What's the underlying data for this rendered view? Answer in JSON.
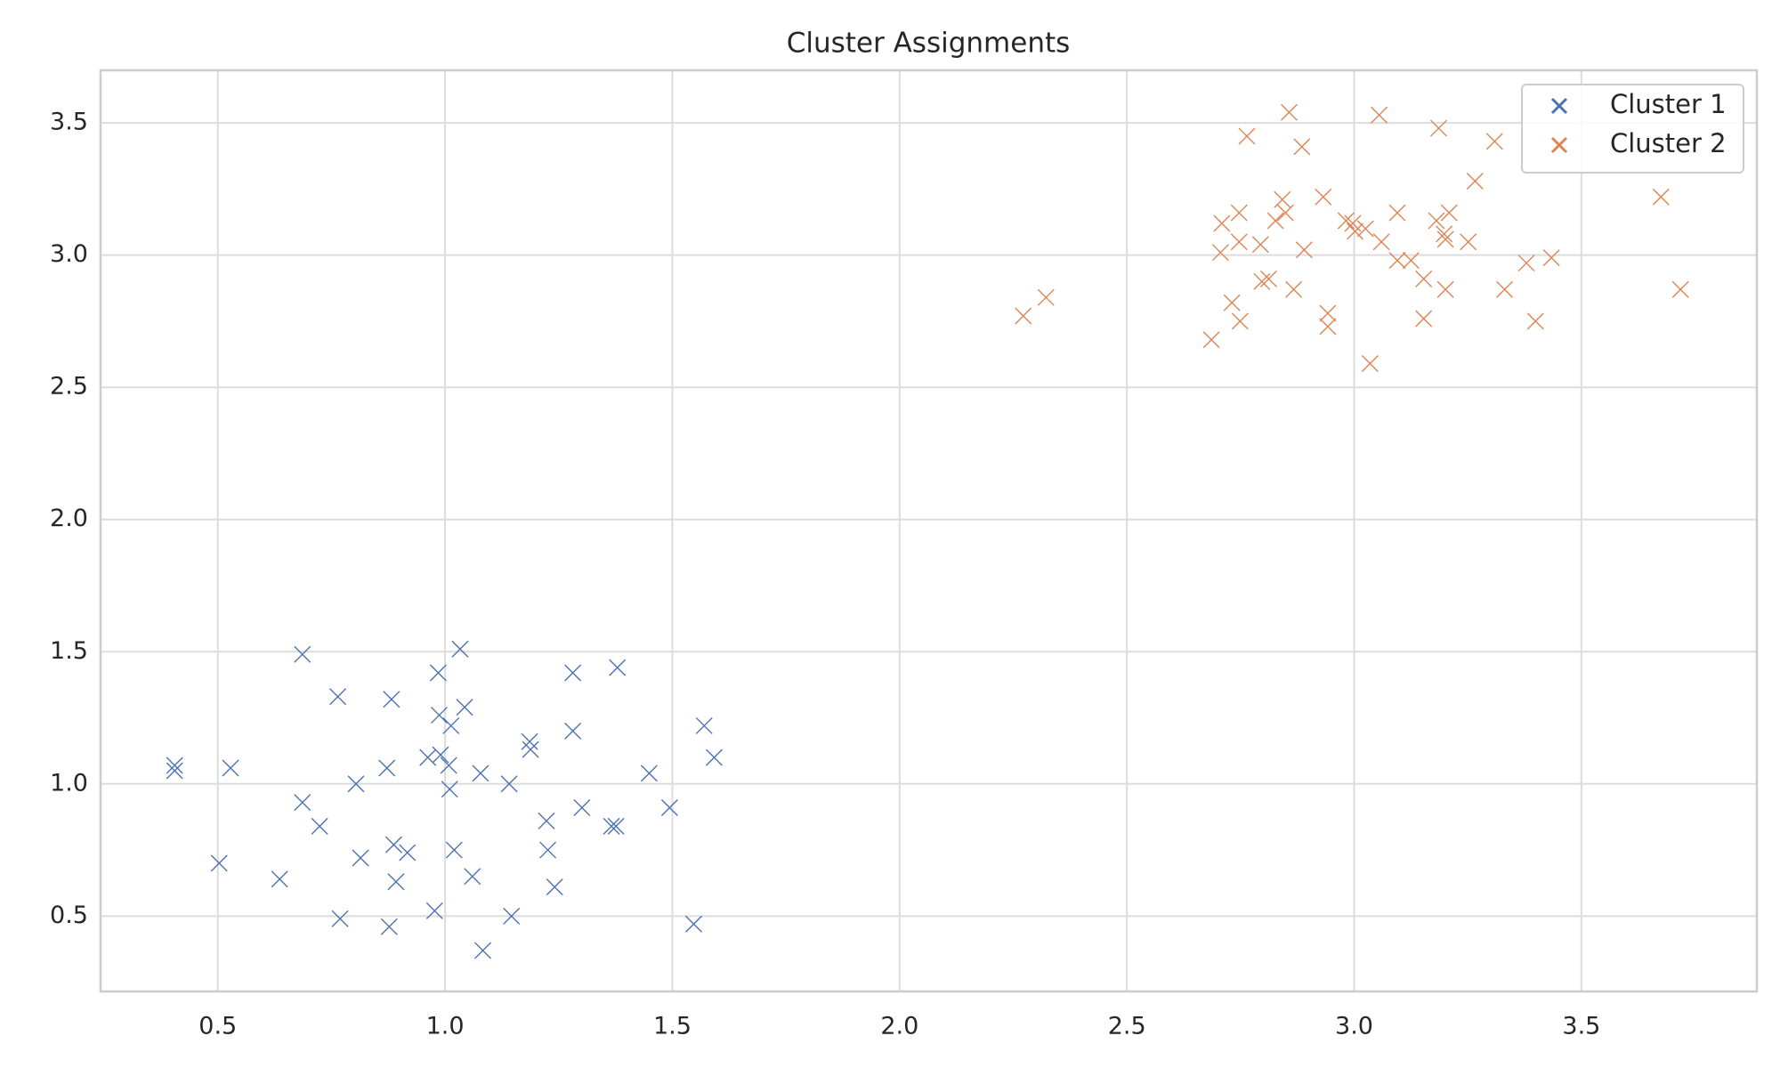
{
  "chart_data": {
    "type": "scatter",
    "title": "Cluster Assignments",
    "xlim": [
      0.242,
      3.886
    ],
    "ylim": [
      0.215,
      3.699
    ],
    "xticks": [
      0.5,
      {
        "value": 1,
        "label": "1.0"
      },
      1.5,
      {
        "value": 2,
        "label": "2.0"
      },
      2.5,
      {
        "value": 3,
        "label": "3.0"
      },
      3.5
    ],
    "yticks": [
      0.5,
      {
        "value": 1,
        "label": "1.0"
      },
      1.5,
      {
        "value": 2,
        "label": "2.0"
      },
      2.5,
      {
        "value": 3,
        "label": "3.0"
      },
      3.5
    ],
    "grid": true,
    "legend": "upper-right",
    "marker": "x",
    "series": [
      {
        "name": "Cluster 1",
        "color": "#4c72b0",
        "x": [
          0.405,
          0.405,
          0.528,
          0.503,
          0.686,
          0.686,
          0.724,
          0.636,
          0.764,
          0.769,
          0.804,
          0.814,
          0.882,
          0.872,
          0.887,
          0.892,
          0.917,
          0.877,
          0.985,
          0.987,
          0.962,
          0.99,
          1.008,
          1.013,
          1.033,
          1.043,
          1.01,
          1.02,
          0.977,
          1.078,
          1.06,
          1.083,
          1.141,
          1.146,
          1.186,
          1.188,
          1.223,
          1.226,
          1.241,
          1.281,
          1.281,
          1.301,
          1.366,
          1.376,
          1.379,
          1.449,
          1.494,
          1.547,
          1.57,
          1.592
        ],
        "values": [
          1.07,
          1.05,
          1.06,
          0.7,
          1.49,
          0.93,
          0.84,
          0.64,
          1.33,
          0.49,
          1.0,
          0.72,
          1.32,
          1.06,
          0.77,
          0.63,
          0.74,
          0.46,
          1.42,
          1.26,
          1.1,
          1.11,
          1.07,
          1.22,
          1.51,
          1.29,
          0.98,
          0.75,
          0.52,
          1.04,
          0.65,
          0.37,
          1.0,
          0.5,
          1.16,
          1.13,
          0.86,
          0.75,
          0.61,
          1.42,
          1.2,
          0.91,
          0.84,
          0.84,
          1.44,
          1.04,
          0.91,
          0.47,
          1.22,
          1.1
        ]
      },
      {
        "name": "Cluster 2",
        "color": "#dd8452",
        "x": [
          2.272,
          2.322,
          2.686,
          2.706,
          2.709,
          2.731,
          2.747,
          2.747,
          2.749,
          2.764,
          2.794,
          2.797,
          2.812,
          2.827,
          2.842,
          2.849,
          2.857,
          2.867,
          2.885,
          2.89,
          2.932,
          2.942,
          2.942,
          2.982,
          2.997,
          3.002,
          3.025,
          3.035,
          3.055,
          3.06,
          3.095,
          3.095,
          3.125,
          3.153,
          3.153,
          3.181,
          3.186,
          3.198,
          3.201,
          3.201,
          3.209,
          3.251,
          3.266,
          3.309,
          3.331,
          3.379,
          3.399,
          3.434,
          3.675,
          3.718
        ],
        "values": [
          2.77,
          2.84,
          2.68,
          3.01,
          3.12,
          2.82,
          3.16,
          3.05,
          2.75,
          3.45,
          3.04,
          2.9,
          2.91,
          3.13,
          3.21,
          3.16,
          3.54,
          2.87,
          3.41,
          3.02,
          3.22,
          2.78,
          2.73,
          3.13,
          3.12,
          3.09,
          3.1,
          2.59,
          3.53,
          3.05,
          3.16,
          2.98,
          2.98,
          2.91,
          2.76,
          3.13,
          3.48,
          3.08,
          3.06,
          2.87,
          3.16,
          3.05,
          3.28,
          3.43,
          2.87,
          2.97,
          2.75,
          2.99,
          3.22,
          2.87
        ]
      }
    ]
  }
}
